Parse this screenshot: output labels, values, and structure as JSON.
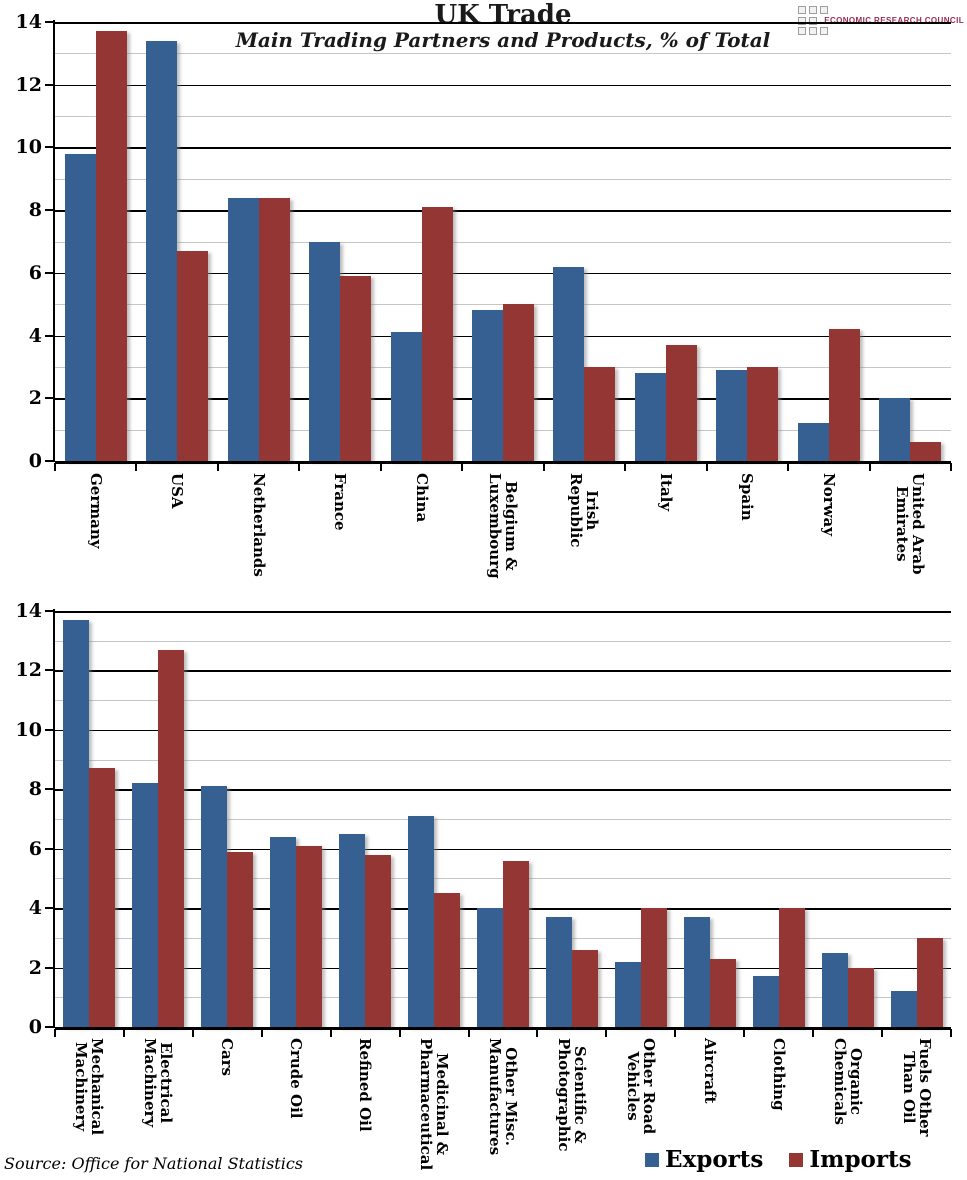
{
  "header": {
    "title": "UK Trade",
    "subtitle": "Main Trading Partners and Products, % of Total",
    "logo": {
      "text": "ECONOMIC RESEARCH COUNCIL",
      "color": "#9B2B55"
    }
  },
  "legend": {
    "exports_label": "Exports",
    "imports_label": "Imports"
  },
  "source": "Source: Office for National Statistics",
  "colors": {
    "exports": "#366092",
    "imports": "#943634",
    "grid_major": "#000000",
    "grid_minor": "#C6C6C6"
  },
  "chart_data": [
    {
      "id": "partners",
      "type": "bar",
      "categories": [
        "Germany",
        "USA",
        "Netherlands",
        "France",
        "China",
        "Belgium &\nLuxembourg",
        "Irish\nRepublic",
        "Italy",
        "Spain",
        "Norway",
        "United Arab\nEmirates"
      ],
      "series": [
        {
          "name": "Exports",
          "values": [
            9.8,
            13.4,
            8.4,
            7.0,
            4.1,
            4.8,
            6.2,
            2.8,
            2.9,
            1.2,
            2.0
          ]
        },
        {
          "name": "Imports",
          "values": [
            13.7,
            6.7,
            8.4,
            5.9,
            8.1,
            5.0,
            3.0,
            3.7,
            3.0,
            4.2,
            0.6
          ]
        }
      ],
      "ylim": [
        0,
        14
      ],
      "ytick_interval": 2,
      "grid": true,
      "legend_position": "bottom-right"
    },
    {
      "id": "products",
      "type": "bar",
      "categories": [
        "Mechanical\nMachinery",
        "Electrical\nMachinery",
        "Cars",
        "Crude Oil",
        "Refined Oil",
        "Medicinal &\nPharmaceutical",
        "Other Misc.\nManufactures",
        "Scientific &\nPhotographic",
        "Other Road\nVehicles",
        "Aircraft",
        "Clothing",
        "Organic\nChemicals",
        "Fuels Other\nThan Oil"
      ],
      "series": [
        {
          "name": "Exports",
          "values": [
            13.7,
            8.2,
            8.1,
            6.4,
            6.5,
            7.1,
            4.0,
            3.7,
            2.2,
            3.7,
            1.7,
            2.5,
            1.2
          ]
        },
        {
          "name": "Imports",
          "values": [
            8.7,
            12.7,
            5.9,
            6.1,
            5.8,
            4.5,
            5.6,
            2.6,
            4.0,
            2.3,
            4.0,
            2.0,
            3.0
          ]
        }
      ],
      "ylim": [
        0,
        14
      ],
      "ytick_interval": 2,
      "grid": true,
      "legend_position": "bottom-right"
    }
  ]
}
